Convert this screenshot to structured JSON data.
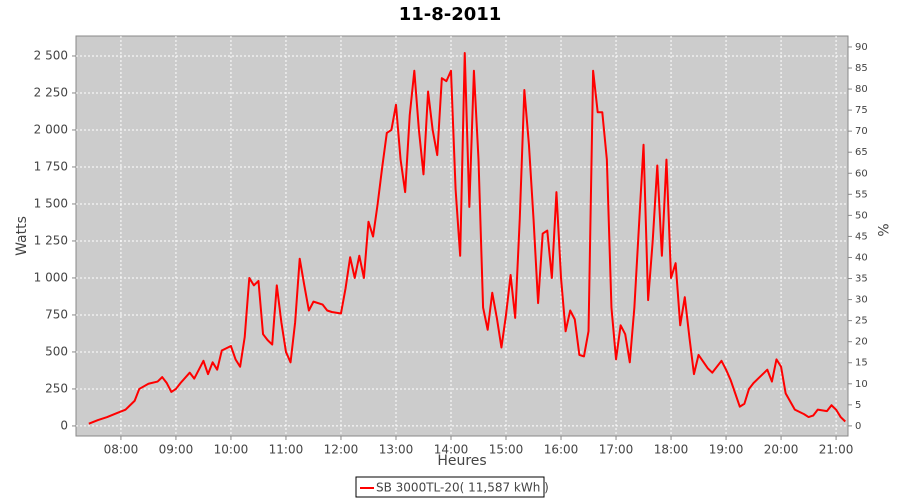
{
  "chart_data": {
    "type": "line",
    "title": "11-8-2011",
    "xlabel": "Heures",
    "ylabel": "Watts",
    "y2label": "%",
    "x": [
      "07:25",
      "07:35",
      "07:45",
      "07:55",
      "08:05",
      "08:15",
      "08:20",
      "08:30",
      "08:40",
      "08:45",
      "08:50",
      "08:55",
      "09:00",
      "09:05",
      "09:15",
      "09:20",
      "09:30",
      "09:35",
      "09:40",
      "09:45",
      "09:50",
      "10:00",
      "10:05",
      "10:10",
      "10:15",
      "10:20",
      "10:25",
      "10:30",
      "10:35",
      "10:40",
      "10:45",
      "10:50",
      "10:55",
      "11:00",
      "11:05",
      "11:10",
      "11:15",
      "11:20",
      "11:25",
      "11:30",
      "11:40",
      "11:45",
      "11:50",
      "12:00",
      "12:05",
      "12:10",
      "12:15",
      "12:20",
      "12:25",
      "12:30",
      "12:35",
      "12:40",
      "12:45",
      "12:50",
      "12:55",
      "13:00",
      "13:05",
      "13:10",
      "13:15",
      "13:20",
      "13:25",
      "13:30",
      "13:35",
      "13:40",
      "13:45",
      "13:50",
      "13:55",
      "14:00",
      "14:05",
      "14:10",
      "14:15",
      "14:20",
      "14:25",
      "14:30",
      "14:35",
      "14:40",
      "14:45",
      "14:50",
      "14:55",
      "15:00",
      "15:05",
      "15:10",
      "15:15",
      "15:20",
      "15:25",
      "15:30",
      "15:35",
      "15:40",
      "15:45",
      "15:50",
      "15:55",
      "16:00",
      "16:05",
      "16:10",
      "16:15",
      "16:20",
      "16:25",
      "16:30",
      "16:35",
      "16:40",
      "16:45",
      "16:50",
      "16:55",
      "17:00",
      "17:05",
      "17:10",
      "17:15",
      "17:20",
      "17:30",
      "17:35",
      "17:40",
      "17:45",
      "17:50",
      "17:55",
      "18:00",
      "18:05",
      "18:10",
      "18:15",
      "18:20",
      "18:25",
      "18:30",
      "18:40",
      "18:45",
      "18:55",
      "19:00",
      "19:05",
      "19:10",
      "19:15",
      "19:20",
      "19:25",
      "19:30",
      "19:35",
      "19:45",
      "19:50",
      "19:55",
      "20:00",
      "20:05",
      "20:15",
      "20:25",
      "20:30",
      "20:35",
      "20:40",
      "20:50",
      "20:55",
      "21:00",
      "21:05",
      "21:10"
    ],
    "series": [
      {
        "name": "SB 3000TL-20( 11,587 kWh )",
        "color": "#ff0000",
        "values": [
          15,
          40,
          60,
          85,
          110,
          170,
          250,
          285,
          300,
          330,
          290,
          230,
          250,
          290,
          360,
          320,
          440,
          350,
          430,
          380,
          510,
          540,
          450,
          400,
          600,
          1000,
          950,
          980,
          620,
          580,
          550,
          950,
          700,
          500,
          430,
          700,
          1130,
          950,
          780,
          840,
          820,
          780,
          770,
          760,
          930,
          1140,
          1000,
          1150,
          1000,
          1380,
          1280,
          1500,
          1750,
          1980,
          2000,
          2170,
          1800,
          1580,
          2100,
          2400,
          2000,
          1700,
          2260,
          2000,
          1830,
          2350,
          2330,
          2400,
          1600,
          1150,
          2520,
          1480,
          2400,
          1800,
          800,
          650,
          900,
          730,
          530,
          750,
          1020,
          730,
          1400,
          2270,
          1900,
          1400,
          830,
          1300,
          1320,
          1000,
          1580,
          1000,
          640,
          780,
          720,
          480,
          470,
          640,
          2400,
          2120,
          2120,
          1800,
          800,
          450,
          680,
          620,
          430,
          800,
          1900,
          850,
          1250,
          1760,
          1150,
          1800,
          1000,
          1100,
          680,
          870,
          600,
          350,
          480,
          390,
          360,
          440,
          380,
          310,
          220,
          130,
          150,
          250,
          290,
          320,
          380,
          300,
          450,
          400,
          220,
          110,
          80,
          60,
          70,
          110,
          100,
          140,
          110,
          60,
          30
        ]
      }
    ],
    "xlim": [
      "07:11",
      "21:13"
    ],
    "xticks": [
      "08:00",
      "09:00",
      "10:00",
      "11:00",
      "12:00",
      "13:00",
      "14:00",
      "15:00",
      "16:00",
      "17:00",
      "18:00",
      "19:00",
      "20:00",
      "21:00"
    ],
    "ylim": [
      -68,
      2635
    ],
    "yticks": [
      0,
      250,
      500,
      750,
      {
        "value": 1000,
        "label": "1 000"
      },
      {
        "value": 1250,
        "label": "1 250"
      },
      {
        "value": 1500,
        "label": "1 500"
      },
      {
        "value": 1750,
        "label": "1 750"
      },
      {
        "value": 2000,
        "label": "2 000"
      },
      {
        "value": 2250,
        "label": "2 250"
      },
      {
        "value": 2500,
        "label": "2 500"
      }
    ],
    "y2lim": [
      -2.4,
      92.6
    ],
    "y2ticks": [
      0,
      5,
      10,
      15,
      20,
      25,
      30,
      35,
      40,
      45,
      50,
      55,
      60,
      65,
      70,
      75,
      80,
      85,
      90
    ],
    "grid": true,
    "legend": "bottom"
  }
}
